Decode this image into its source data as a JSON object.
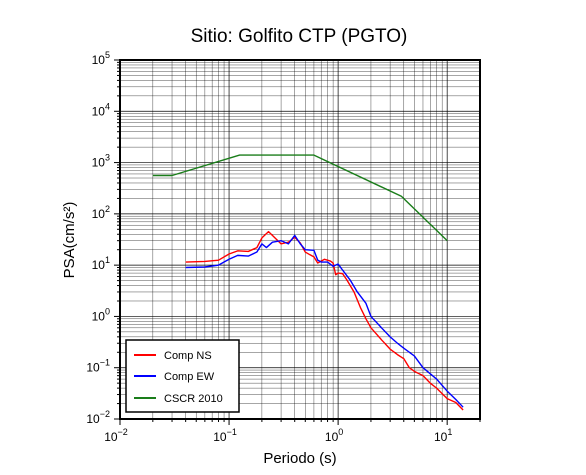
{
  "chart_data": {
    "type": "line",
    "title": "Sitio: Golfito CTP (PGTO)",
    "xlabel": "Periodo (s)",
    "ylabel": "PSA(cm/s²)",
    "xscale": "log",
    "yscale": "log",
    "xlim": [
      0.01,
      20
    ],
    "ylim": [
      0.01,
      100000
    ],
    "grid": true,
    "legend_position": "bottom-left",
    "x_ticks": [
      {
        "value": 0.01,
        "base": "10",
        "exp": "−2"
      },
      {
        "value": 0.1,
        "base": "10",
        "exp": "−1"
      },
      {
        "value": 1,
        "base": "10",
        "exp": "0"
      },
      {
        "value": 10,
        "base": "10",
        "exp": "1"
      }
    ],
    "y_ticks": [
      {
        "value": 0.01,
        "base": "10",
        "exp": "−2"
      },
      {
        "value": 0.1,
        "base": "10",
        "exp": "−1"
      },
      {
        "value": 1,
        "base": "10",
        "exp": "0"
      },
      {
        "value": 10,
        "base": "10",
        "exp": "1"
      },
      {
        "value": 100,
        "base": "10",
        "exp": "2"
      },
      {
        "value": 1000,
        "base": "10",
        "exp": "3"
      },
      {
        "value": 10000,
        "base": "10",
        "exp": "4"
      },
      {
        "value": 100000,
        "base": "10",
        "exp": "5"
      }
    ],
    "series": [
      {
        "name": "Comp NS",
        "color": "#ff0000",
        "points": [
          [
            0.04,
            11.5
          ],
          [
            0.06,
            11.8
          ],
          [
            0.08,
            12.5
          ],
          [
            0.1,
            16.5
          ],
          [
            0.12,
            19.0
          ],
          [
            0.15,
            18.5
          ],
          [
            0.18,
            22.0
          ],
          [
            0.2,
            34.0
          ],
          [
            0.23,
            45.0
          ],
          [
            0.26,
            35.0
          ],
          [
            0.3,
            26.0
          ],
          [
            0.35,
            28.0
          ],
          [
            0.4,
            35.0
          ],
          [
            0.45,
            27.0
          ],
          [
            0.5,
            18.0
          ],
          [
            0.55,
            16.0
          ],
          [
            0.6,
            14.5
          ],
          [
            0.65,
            11.0
          ],
          [
            0.7,
            12.0
          ],
          [
            0.75,
            13.0
          ],
          [
            0.8,
            12.5
          ],
          [
            0.85,
            12.0
          ],
          [
            0.9,
            11.0
          ],
          [
            0.95,
            6.5
          ],
          [
            1.0,
            7.0
          ],
          [
            1.1,
            6.8
          ],
          [
            1.2,
            5.2
          ],
          [
            1.4,
            3.0
          ],
          [
            1.6,
            1.5
          ],
          [
            1.8,
            0.9
          ],
          [
            2.0,
            0.6
          ],
          [
            2.5,
            0.35
          ],
          [
            3.0,
            0.23
          ],
          [
            3.5,
            0.18
          ],
          [
            4.0,
            0.15
          ],
          [
            4.5,
            0.1
          ],
          [
            5.0,
            0.085
          ],
          [
            6.0,
            0.07
          ],
          [
            7.0,
            0.05
          ],
          [
            8.0,
            0.04
          ],
          [
            10.0,
            0.025
          ],
          [
            12.0,
            0.021
          ],
          [
            14.0,
            0.015
          ]
        ]
      },
      {
        "name": "Comp EW",
        "color": "#0000ff",
        "points": [
          [
            0.04,
            9.0
          ],
          [
            0.06,
            9.2
          ],
          [
            0.08,
            10.0
          ],
          [
            0.1,
            13.0
          ],
          [
            0.12,
            15.5
          ],
          [
            0.15,
            15.0
          ],
          [
            0.18,
            18.0
          ],
          [
            0.2,
            26.0
          ],
          [
            0.22,
            22.0
          ],
          [
            0.25,
            28.0
          ],
          [
            0.3,
            30.0
          ],
          [
            0.35,
            26.0
          ],
          [
            0.4,
            38.0
          ],
          [
            0.45,
            26.0
          ],
          [
            0.5,
            20.0
          ],
          [
            0.6,
            19.5
          ],
          [
            0.65,
            12.5
          ],
          [
            0.7,
            11.5
          ],
          [
            0.8,
            11.5
          ],
          [
            0.9,
            9.5
          ],
          [
            1.0,
            10.5
          ],
          [
            1.1,
            8.0
          ],
          [
            1.3,
            5.0
          ],
          [
            1.5,
            3.0
          ],
          [
            1.8,
            1.8
          ],
          [
            2.0,
            1.0
          ],
          [
            2.5,
            0.6
          ],
          [
            3.0,
            0.4
          ],
          [
            3.5,
            0.3
          ],
          [
            4.0,
            0.24
          ],
          [
            5.0,
            0.17
          ],
          [
            6.0,
            0.1
          ],
          [
            8.0,
            0.06
          ],
          [
            10.0,
            0.035
          ],
          [
            12.0,
            0.024
          ],
          [
            14.0,
            0.017
          ]
        ]
      },
      {
        "name": "CSCR 2010",
        "color": "#1a7d1a",
        "points": [
          [
            0.02,
            560
          ],
          [
            0.03,
            560
          ],
          [
            0.125,
            1400
          ],
          [
            0.6,
            1400
          ],
          [
            3.8,
            220
          ],
          [
            10.0,
            30
          ]
        ]
      }
    ]
  }
}
